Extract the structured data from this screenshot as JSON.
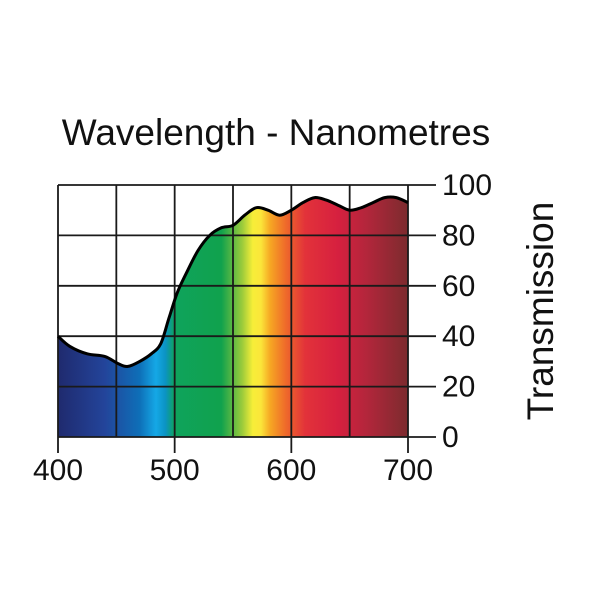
{
  "chart_data": {
    "type": "area",
    "title": "Wavelength - Nanometres",
    "xlabel": "Wavelength - Nanometres",
    "ylabel": "Transmission",
    "xlim": [
      400,
      700
    ],
    "ylim": [
      0,
      100
    ],
    "x_ticks": [
      "400",
      "500",
      "600",
      "700"
    ],
    "y_ticks": [
      "0",
      "20",
      "40",
      "60",
      "80",
      "100"
    ],
    "x_grid": [
      400,
      450,
      500,
      550,
      600,
      650,
      700
    ],
    "y_grid": [
      0,
      20,
      40,
      60,
      80,
      100
    ],
    "grid": true,
    "series": [
      {
        "name": "Transmission",
        "x": [
          400,
          410,
          425,
          440,
          452,
          460,
          470,
          480,
          488,
          495,
          502,
          510,
          520,
          530,
          540,
          550,
          560,
          570,
          580,
          590,
          600,
          610,
          620,
          630,
          640,
          650,
          660,
          670,
          680,
          690,
          700
        ],
        "y": [
          40,
          36,
          33,
          32,
          29,
          28,
          30,
          33,
          37,
          47,
          57,
          65,
          74,
          80,
          83,
          84,
          88,
          91,
          90,
          88,
          90,
          93,
          95,
          94,
          92,
          90,
          91,
          93,
          95,
          95,
          93
        ]
      }
    ],
    "spectrum_stops": [
      {
        "wavelength": 400,
        "color": "#1f2a6e"
      },
      {
        "wavelength": 440,
        "color": "#23449a"
      },
      {
        "wavelength": 470,
        "color": "#0e6fb8"
      },
      {
        "wavelength": 484,
        "color": "#15a8e6"
      },
      {
        "wavelength": 492,
        "color": "#0b93c4"
      },
      {
        "wavelength": 500,
        "color": "#0fa35c"
      },
      {
        "wavelength": 540,
        "color": "#10a24d"
      },
      {
        "wavelength": 558,
        "color": "#9ccb3b"
      },
      {
        "wavelength": 567,
        "color": "#f7ee38"
      },
      {
        "wavelength": 574,
        "color": "#fbe53a"
      },
      {
        "wavelength": 582,
        "color": "#f6a623"
      },
      {
        "wavelength": 595,
        "color": "#ef6b2a"
      },
      {
        "wavelength": 612,
        "color": "#e2323a"
      },
      {
        "wavelength": 640,
        "color": "#d6203f"
      },
      {
        "wavelength": 665,
        "color": "#b2263b"
      },
      {
        "wavelength": 700,
        "color": "#7c2b2e"
      }
    ],
    "colors": {
      "curve": "#000000",
      "grid": "#1a1a1a",
      "background": "#ffffff"
    }
  }
}
